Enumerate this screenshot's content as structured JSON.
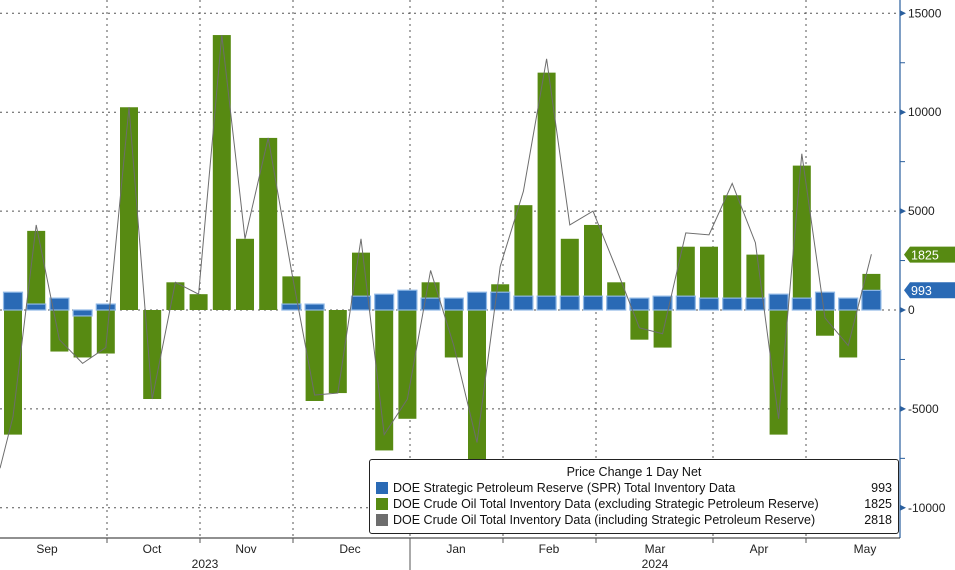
{
  "chart_data": {
    "type": "bar",
    "title": "Price Change 1 Day Net",
    "y_axis": {
      "position": "right",
      "ticks": [
        15000,
        10000,
        5000,
        0,
        -5000,
        -10000
      ],
      "range": [
        -11500,
        15000
      ],
      "grid": true
    },
    "x_axis": {
      "months": [
        "Sep",
        "Oct",
        "Nov",
        "Dec",
        "Jan",
        "Feb",
        "Mar",
        "Apr",
        "May"
      ],
      "years": [
        "2023",
        "2024"
      ]
    },
    "series": [
      {
        "name": "DOE Strategic Petroleum Reserve (SPR) Total Inventory Data",
        "color": "#2a6ab5",
        "last": "993",
        "values": [
          900,
          300,
          600,
          -300,
          300,
          0,
          0,
          0,
          0,
          0,
          0,
          0,
          300,
          300,
          0,
          700,
          800,
          1000,
          600,
          600,
          900,
          900,
          700,
          700,
          700,
          700,
          700,
          600,
          700,
          700,
          600,
          600,
          600,
          800,
          600,
          900,
          600,
          993
        ]
      },
      {
        "name": "DOE Crude Oil Total Inventory Data (excluding Strategic Petroleum Reserve)",
        "color": "#578a12",
        "last": "1825",
        "values": [
          -6300,
          4000,
          -2100,
          -2400,
          -2200,
          10250,
          -4500,
          1400,
          800,
          13900,
          3600,
          8700,
          1700,
          -4600,
          -4200,
          2900,
          -7100,
          -5500,
          1400,
          -2400,
          -7600,
          1300,
          5300,
          12000,
          3600,
          4300,
          1400,
          -1500,
          -1900,
          3200,
          3200,
          5800,
          2800,
          -6300,
          7300,
          -1300,
          -2400,
          1825
        ]
      },
      {
        "name": "DOE Crude Oil Total Inventory Data (including Strategic Petroleum Reserve)",
        "color": "#6d6d6d",
        "last": "2818",
        "type": "line"
      }
    ]
  }
}
